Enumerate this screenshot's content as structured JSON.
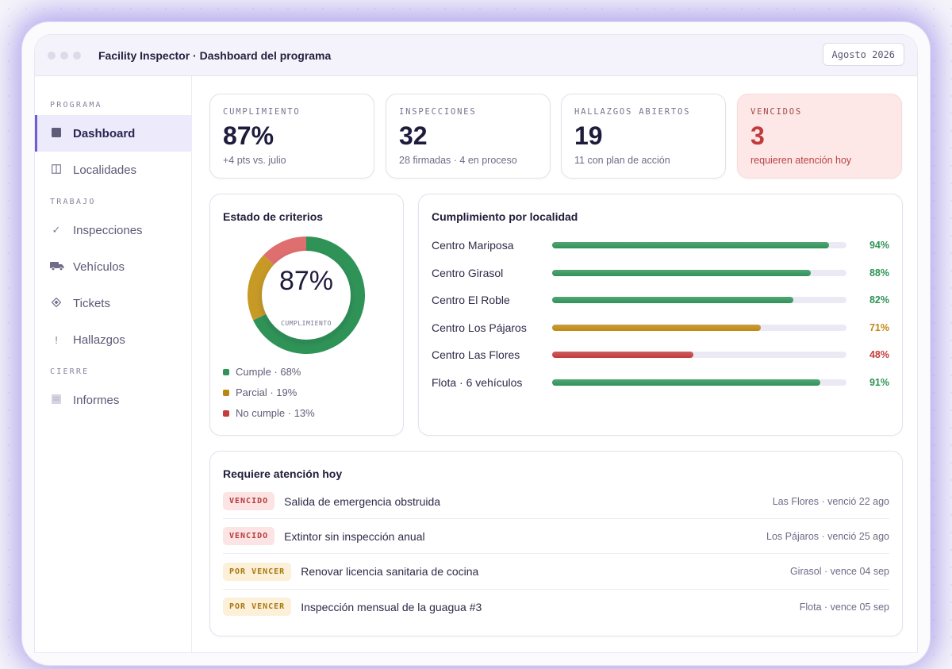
{
  "app": {
    "title": "Facility Inspector · Dashboard del programa",
    "period": "Agosto 2026"
  },
  "sidebar": {
    "sections": [
      {
        "label": "PROGRAMA"
      },
      {
        "label": "TRABAJO"
      },
      {
        "label": "CIERRE"
      }
    ],
    "items": [
      {
        "label": "Dashboard",
        "icon": "grid-icon",
        "active": true
      },
      {
        "label": "Localidades",
        "icon": "columns-icon"
      },
      {
        "label": "Inspecciones",
        "icon": "check-icon"
      },
      {
        "label": "Vehículos",
        "icon": "truck-icon"
      },
      {
        "label": "Tickets",
        "icon": "diamond-icon"
      },
      {
        "label": "Hallazgos",
        "icon": "exclamation-icon"
      },
      {
        "label": "Informes",
        "icon": "report-icon"
      }
    ]
  },
  "kpis": [
    {
      "label": "CUMPLIMIENTO",
      "value": "87%",
      "sub": "+4 pts vs. julio"
    },
    {
      "label": "INSPECCIONES",
      "value": "32",
      "sub": "28 firmadas · 4 en proceso"
    },
    {
      "label": "HALLAZGOS ABIERTOS",
      "value": "19",
      "sub": "11 con plan de acción"
    },
    {
      "label": "VENCIDOS",
      "value": "3",
      "sub": "requieren atención hoy"
    }
  ],
  "criteria": {
    "title": "Estado de criterios",
    "center_value": "87%",
    "center_caption": "CUMPLIMIENTO",
    "legend": [
      {
        "label": "Cumple · 68%",
        "value": 68,
        "color": "#2f9357"
      },
      {
        "label": "Parcial · 19%",
        "value": 19,
        "color": "#c79a26"
      },
      {
        "label": "No cumple · 13%",
        "value": 13,
        "color": "#df6f6f"
      }
    ]
  },
  "locations": {
    "title": "Cumplimiento por localidad",
    "rows": [
      {
        "name": "Centro Mariposa",
        "value": 94,
        "pct": "94%",
        "color": "#2f9357"
      },
      {
        "name": "Centro Girasol",
        "value": 88,
        "pct": "88%",
        "color": "#2f9357"
      },
      {
        "name": "Centro El Roble",
        "value": 82,
        "pct": "82%",
        "color": "#2f9357"
      },
      {
        "name": "Centro Los Pájaros",
        "value": 71,
        "pct": "71%",
        "color": "#c08a12"
      },
      {
        "name": "Centro Las Flores",
        "value": 48,
        "pct": "48%",
        "color": "#c53c3c"
      },
      {
        "name": "Flota · 6 vehículos",
        "value": 91,
        "pct": "91%",
        "color": "#2f9357"
      }
    ]
  },
  "attention": {
    "title": "Requiere atención hoy",
    "rows": [
      {
        "badge": "VENCIDO",
        "kind": "venc",
        "text": "Salida de emergencia obstruida",
        "meta": "Las Flores · venció 22 ago"
      },
      {
        "badge": "VENCIDO",
        "kind": "venc",
        "text": "Extintor sin inspección anual",
        "meta": "Los Pájaros · venció 25 ago"
      },
      {
        "badge": "POR VENCER",
        "kind": "porv",
        "text": "Renovar licencia sanitaria de cocina",
        "meta": "Girasol · vence 04 sep"
      },
      {
        "badge": "POR VENCER",
        "kind": "porv",
        "text": "Inspección mensual de la guagua #3",
        "meta": "Flota · vence 05 sep"
      }
    ]
  }
}
